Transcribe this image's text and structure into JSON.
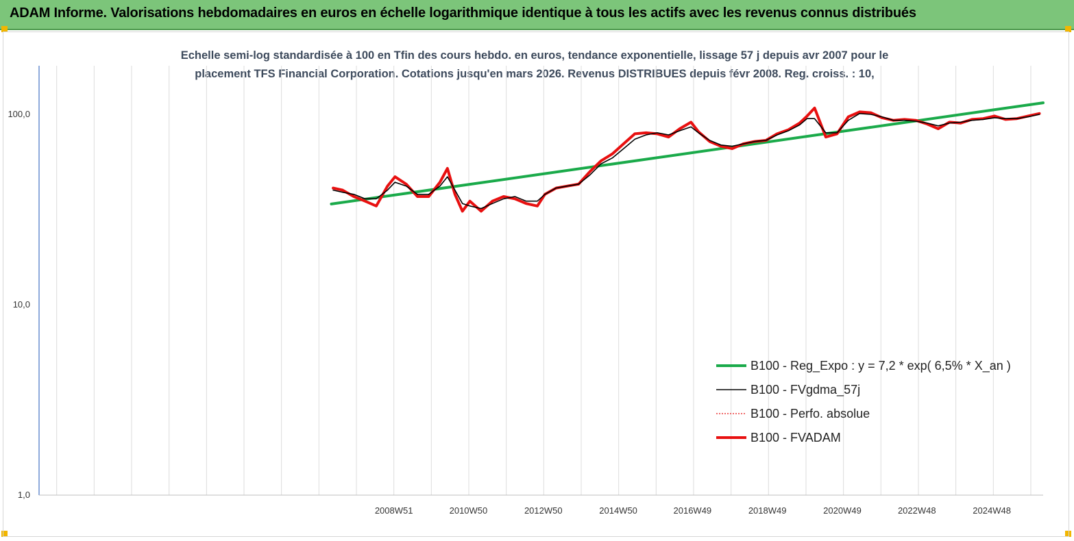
{
  "header": {
    "title": "ADAM Informe. Valorisations hebdomadaires en euros en échelle logarithmique identique à tous les actifs avec les revenus connus distribués"
  },
  "chart_data": {
    "type": "line",
    "title": "",
    "subtitle_lines": [
      "Echelle semi-log standardisée à 100 en Tfin des cours hebdo. en euros, tendance exponentielle, lissage 57 j depuis avr 2007 pour le",
      "placement TFS Financial Corporation. Cotations jusqu'en mars 2026. Revenus DISTRIBUES depuis févr 2008. Reg. croiss. : 10,"
    ],
    "y_scale": "log",
    "ylim": [
      1,
      180
    ],
    "y_ticks": [
      {
        "value": 1,
        "label": "1,0"
      },
      {
        "value": 10,
        "label": "10,0"
      },
      {
        "value": 100,
        "label": "100,0"
      }
    ],
    "xlim": [
      1999.5,
      2026.3
    ],
    "x_ticks": [
      {
        "value": 2008.97,
        "label": "2008W51"
      },
      {
        "value": 2010.96,
        "label": "2010W50"
      },
      {
        "value": 2012.96,
        "label": "2012W50"
      },
      {
        "value": 2014.96,
        "label": "2014W50"
      },
      {
        "value": 2016.94,
        "label": "2016W49"
      },
      {
        "value": 2018.94,
        "label": "2018W49"
      },
      {
        "value": 2020.94,
        "label": "2020W49"
      },
      {
        "value": 2022.93,
        "label": "2022W48"
      },
      {
        "value": 2024.93,
        "label": "2024W48"
      }
    ],
    "grid": "vertical",
    "legend_position": "bottom-right",
    "series": [
      {
        "name": "B100 - Reg_Expo : y = 7,2 *  exp( 6,5% *  X_an )",
        "color": "#1aaa4a",
        "style": "solid-thick",
        "x": [
          2007.3,
          2026.3
        ],
        "y": [
          33.8,
          115
        ]
      },
      {
        "name": "B100 - FVgdma_57j",
        "color": "#000000",
        "style": "solid-thin",
        "x": [
          2007.35,
          2007.6,
          2007.9,
          2008.2,
          2008.5,
          2008.8,
          2009.0,
          2009.3,
          2009.6,
          2009.9,
          2010.2,
          2010.4,
          2010.6,
          2010.8,
          2011.0,
          2011.3,
          2011.6,
          2011.9,
          2012.2,
          2012.5,
          2012.8,
          2013.0,
          2013.3,
          2013.6,
          2013.9,
          2014.2,
          2014.5,
          2014.8,
          2015.1,
          2015.4,
          2015.7,
          2016.0,
          2016.3,
          2016.6,
          2016.9,
          2017.1,
          2017.4,
          2017.7,
          2018.0,
          2018.3,
          2018.6,
          2018.9,
          2019.2,
          2019.5,
          2019.8,
          2020.0,
          2020.2,
          2020.5,
          2020.8,
          2021.1,
          2021.4,
          2021.7,
          2022.0,
          2022.3,
          2022.6,
          2022.9,
          2023.2,
          2023.5,
          2023.8,
          2024.1,
          2024.4,
          2024.7,
          2025.0,
          2025.3,
          2025.6,
          2025.9,
          2026.2
        ],
        "y": [
          40,
          39,
          38,
          36,
          36,
          40,
          44,
          42,
          38,
          38,
          42,
          47,
          40,
          34,
          33,
          32,
          34,
          36,
          37,
          35,
          35,
          38,
          41,
          42,
          43,
          48,
          55,
          59,
          66,
          74,
          78,
          80,
          78,
          82,
          86,
          80,
          73,
          69,
          68,
          70,
          72,
          73,
          78,
          82,
          88,
          95,
          95,
          80,
          80,
          93,
          101,
          100,
          97,
          93,
          93,
          92,
          90,
          87,
          90,
          91,
          93,
          94,
          96,
          95,
          95,
          97,
          100
        ]
      },
      {
        "name": "B100 - Perfo. absolue",
        "color": "#e81010",
        "style": "dotted",
        "x": [
          2007.35,
          2007.6,
          2007.9,
          2008.2,
          2008.5,
          2008.8,
          2009.0,
          2009.3,
          2009.6,
          2009.9,
          2010.2,
          2010.4,
          2010.6,
          2010.8,
          2011.0,
          2011.3,
          2011.6,
          2011.9,
          2012.2,
          2012.5,
          2012.8,
          2013.0,
          2013.3,
          2013.6,
          2013.9,
          2014.2,
          2014.5,
          2014.8,
          2015.1,
          2015.4,
          2015.7,
          2016.0,
          2016.3,
          2016.6,
          2016.9,
          2017.1,
          2017.4,
          2017.7,
          2018.0,
          2018.3,
          2018.6,
          2018.9,
          2019.2,
          2019.5,
          2019.8,
          2020.0,
          2020.2,
          2020.5,
          2020.8,
          2021.1,
          2021.4,
          2021.7,
          2022.0,
          2022.3,
          2022.6,
          2022.9,
          2023.2,
          2023.5,
          2023.8,
          2024.1,
          2024.4,
          2024.7,
          2025.0,
          2025.3,
          2025.6,
          2025.9,
          2026.2
        ],
        "y": [
          41,
          40,
          37,
          35,
          33,
          42,
          47,
          43,
          37,
          37,
          44,
          52,
          38,
          31,
          35,
          31,
          35,
          37,
          36,
          34,
          33,
          38,
          41,
          42,
          43,
          50,
          57,
          62,
          70,
          79,
          80,
          79,
          76,
          84,
          91,
          81,
          72,
          68,
          66,
          70,
          72,
          73,
          79,
          83,
          90,
          98,
          108,
          76,
          79,
          97,
          103,
          102,
          96,
          93,
          94,
          93,
          89,
          84,
          91,
          90,
          94,
          95,
          98,
          94,
          95,
          98,
          101
        ]
      },
      {
        "name": "B100 - FVADAM",
        "color": "#e81010",
        "style": "solid-thick",
        "x": [
          2007.35,
          2007.6,
          2007.9,
          2008.2,
          2008.5,
          2008.8,
          2009.0,
          2009.3,
          2009.6,
          2009.9,
          2010.2,
          2010.4,
          2010.6,
          2010.8,
          2011.0,
          2011.3,
          2011.6,
          2011.9,
          2012.2,
          2012.5,
          2012.8,
          2013.0,
          2013.3,
          2013.6,
          2013.9,
          2014.2,
          2014.5,
          2014.8,
          2015.1,
          2015.4,
          2015.7,
          2016.0,
          2016.3,
          2016.6,
          2016.9,
          2017.1,
          2017.4,
          2017.7,
          2018.0,
          2018.3,
          2018.6,
          2018.9,
          2019.2,
          2019.5,
          2019.8,
          2020.0,
          2020.2,
          2020.5,
          2020.8,
          2021.1,
          2021.4,
          2021.7,
          2022.0,
          2022.3,
          2022.6,
          2022.9,
          2023.2,
          2023.5,
          2023.8,
          2024.1,
          2024.4,
          2024.7,
          2025.0,
          2025.3,
          2025.6,
          2025.9,
          2026.2
        ],
        "y": [
          41,
          40,
          37,
          35,
          33,
          42,
          47,
          43,
          37,
          37,
          44,
          52,
          38,
          31,
          35,
          31,
          35,
          37,
          36,
          34,
          33,
          38,
          41,
          42,
          43,
          50,
          57,
          62,
          70,
          79,
          80,
          79,
          76,
          84,
          91,
          81,
          72,
          68,
          66,
          70,
          72,
          73,
          79,
          83,
          90,
          98,
          108,
          76,
          79,
          97,
          103,
          102,
          96,
          93,
          94,
          93,
          89,
          84,
          91,
          90,
          94,
          95,
          98,
          94,
          95,
          98,
          101
        ]
      }
    ]
  }
}
